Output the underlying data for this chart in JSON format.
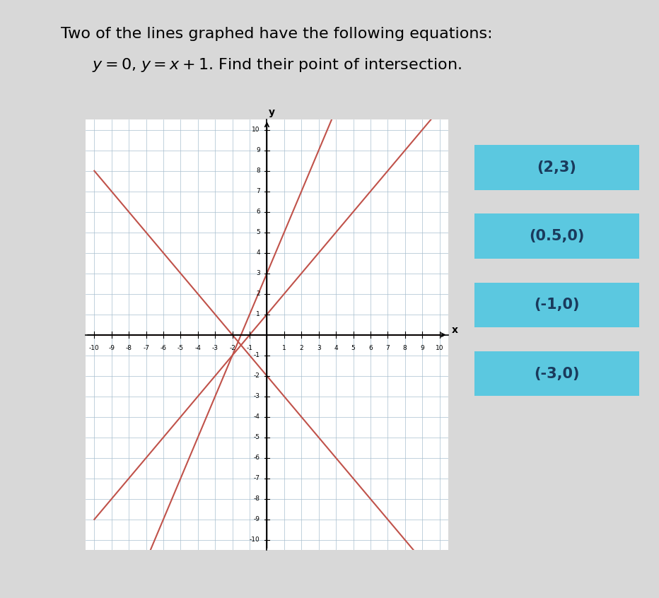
{
  "title_line1": "Two of the lines graphed have the following equations:",
  "title_line2_part1": "y",
  "title_line2_eq1": "= 0",
  "title_line2_mid": ", ",
  "title_line2_part2": "y",
  "title_line2_eq2": "= x + 1",
  "title_line2_end": ". Find their point of intersection.",
  "bg_color": "#d8d8d8",
  "graph_bg": "#ffffff",
  "line_color": "#c0524a",
  "axis_range": [
    -10,
    10
  ],
  "grid_color": "#a8bfcf",
  "lines": [
    {
      "slope": 0,
      "intercept": 0
    },
    {
      "slope": 1,
      "intercept": 1
    },
    {
      "slope": 2,
      "intercept": 3
    },
    {
      "slope": -1,
      "intercept": -2
    }
  ],
  "button_color": "#5bc8e0",
  "button_text_color": "#1a3a5c",
  "button_labels": [
    "(2,3)",
    "(0.5,0)",
    "(-1,0)",
    "(-3,0)"
  ],
  "title_fontsize": 16,
  "button_fontsize": 15
}
